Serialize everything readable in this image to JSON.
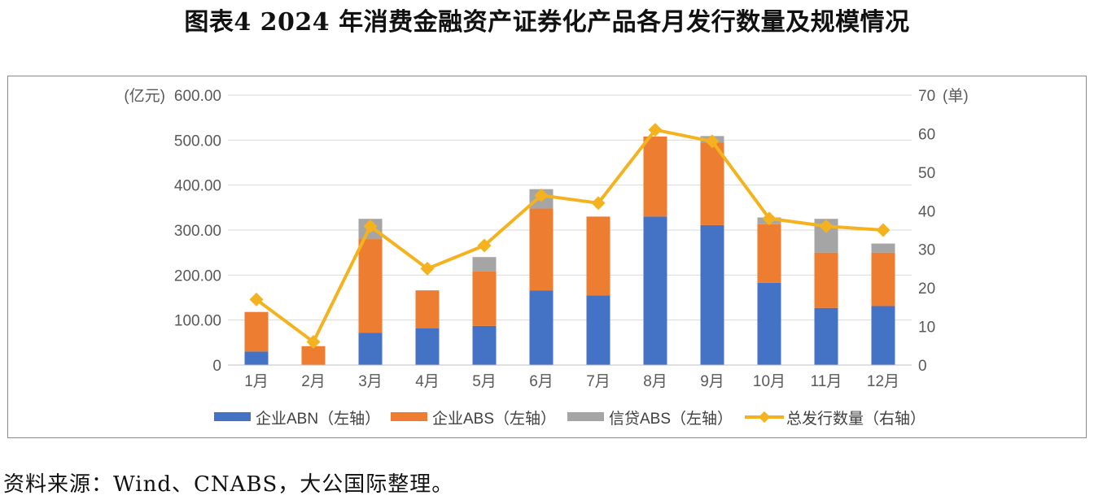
{
  "figure": {
    "title": "图表4  2024 年消费金融资产证券化产品各月发行数量及规模情况",
    "source": "资料来源：Wind、CNABS，大公国际整理。"
  },
  "chart_data": {
    "type": "bar",
    "stacked": true,
    "categories": [
      "1月",
      "2月",
      "3月",
      "4月",
      "5月",
      "6月",
      "7月",
      "8月",
      "9月",
      "10月",
      "11月",
      "12月"
    ],
    "y_left": {
      "unit_label": "(亿元)",
      "ticks": [
        "0",
        "100.00",
        "200.00",
        "300.00",
        "400.00",
        "500.00",
        "600.00"
      ],
      "ylim": [
        0,
        600
      ]
    },
    "y_right": {
      "unit_label": "(单)",
      "ticks": [
        "0",
        "10",
        "20",
        "30",
        "40",
        "50",
        "60",
        "70"
      ],
      "ylim": [
        0,
        70
      ]
    },
    "series": [
      {
        "name": "企业ABN（左轴）",
        "type": "bar",
        "axis": "left",
        "color": "#4472c4",
        "values": [
          30,
          0,
          72,
          82,
          87,
          166,
          155,
          330,
          311,
          183,
          127,
          131
        ]
      },
      {
        "name": "企业ABS（左轴）",
        "type": "bar",
        "axis": "left",
        "color": "#ed7d31",
        "values": [
          88,
          42,
          208,
          84,
          121,
          182,
          175,
          178,
          184,
          130,
          123,
          119
        ]
      },
      {
        "name": "信贷ABS（左轴）",
        "type": "bar",
        "axis": "left",
        "color": "#a5a5a5",
        "values": [
          0,
          0,
          45,
          0,
          32,
          43,
          0,
          0,
          14,
          15,
          75,
          20
        ]
      },
      {
        "name": "总发行数量（右轴）",
        "type": "line",
        "axis": "right",
        "color": "#f5b21f",
        "values": [
          17,
          6,
          36,
          25,
          31,
          44,
          42,
          61,
          58,
          38,
          36,
          35
        ]
      }
    ],
    "legend_position": "bottom",
    "grid": true
  }
}
